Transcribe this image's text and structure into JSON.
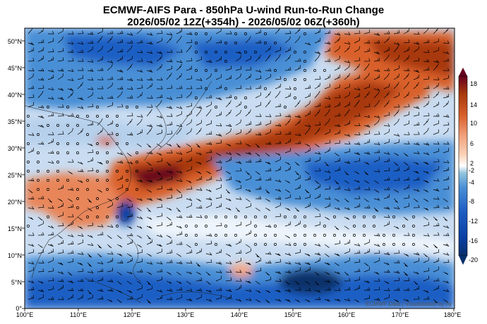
{
  "header": {
    "title_line1": "ECMWF-AIFS Para  - 850hPa U-wind Run-to-Run Change",
    "title_line2": "2026/05/02 12Z(+354h) - 2026/05/02 06Z(+360h)"
  },
  "map": {
    "region": "West Pacific / East Asia",
    "lon_labels": [
      "100°E",
      "110°E",
      "120°E",
      "130°E",
      "140°E",
      "150°E",
      "160°E",
      "170°E",
      "180°E"
    ],
    "lat_labels": [
      "0°",
      "5°N",
      "10°N",
      "15°N",
      "20°N",
      "25°N",
      "30°N",
      "35°N",
      "40°N",
      "45°N",
      "50°N"
    ],
    "credit": "ECMWF Data | Visualization by hy"
  },
  "colorbar": {
    "ticks": [
      "18",
      "14",
      "10",
      "6",
      "2",
      "-2",
      "-4",
      "-8",
      "-12",
      "-16",
      "-20"
    ],
    "colors": {
      "pos_max": "#67001f",
      "pos_strong": "#a8390c",
      "pos_mid": "#d9602a",
      "pos_weak": "#f4a582",
      "neutral": "#ffffff",
      "neg_weak": "#92c5de",
      "neg_mid": "#4a8fd6",
      "neg_strong": "#1f5fc4",
      "neg_max": "#08306b"
    }
  }
}
